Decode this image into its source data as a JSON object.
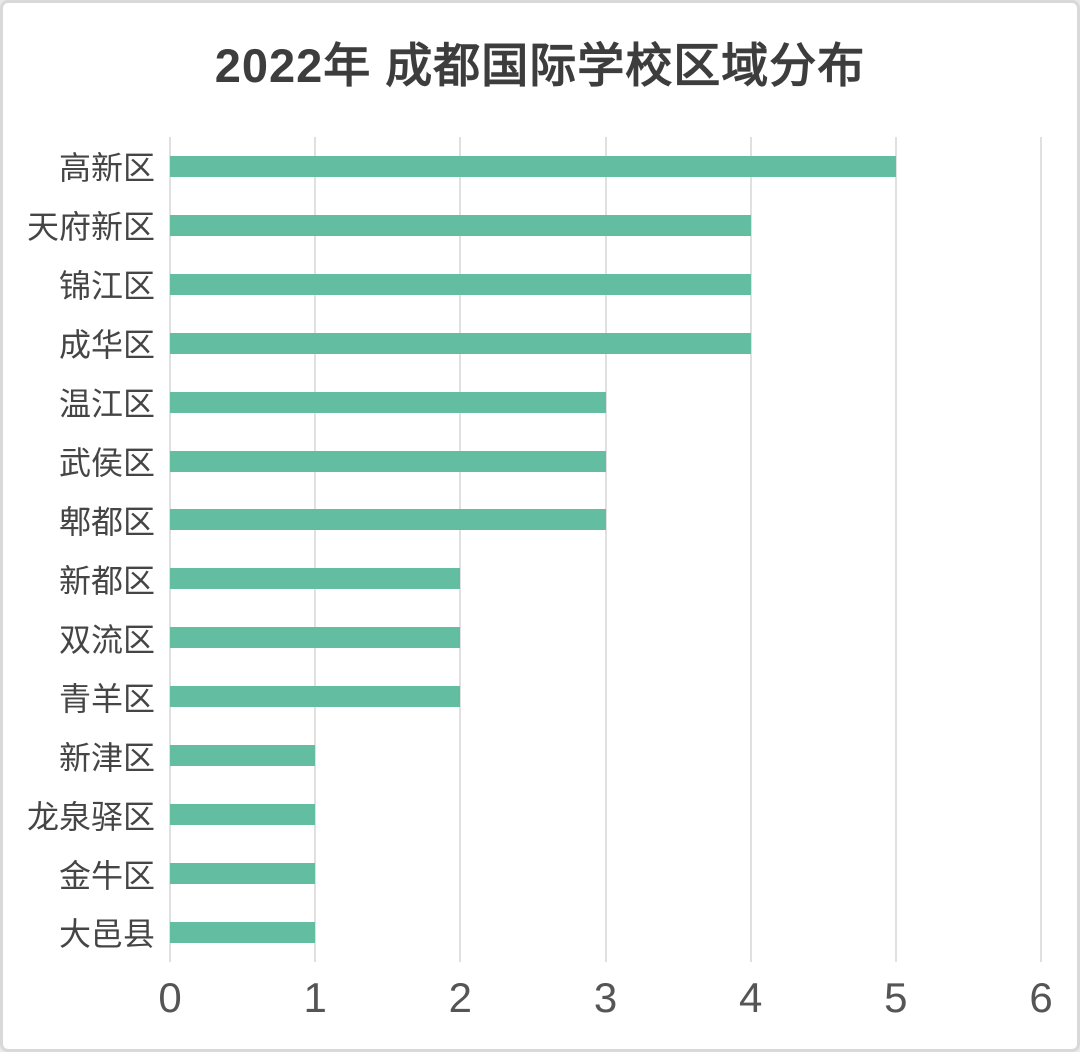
{
  "chart_data": {
    "type": "bar",
    "orientation": "horizontal",
    "title": "2022年 成都国际学校区域分布",
    "categories": [
      "高新区",
      "天府新区",
      "锦江区",
      "成华区",
      "温江区",
      "武侯区",
      "郫都区",
      "新都区",
      "双流区",
      "青羊区",
      "新津区",
      "龙泉驿区",
      "金牛区",
      "大邑县"
    ],
    "values": [
      5,
      4,
      4,
      4,
      3,
      3,
      3,
      2,
      2,
      2,
      1,
      1,
      1,
      1
    ],
    "xlabel": "",
    "ylabel": "",
    "xlim": [
      0,
      6
    ],
    "xticks": [
      "0",
      "1",
      "2",
      "3",
      "4",
      "5",
      "6"
    ],
    "grid": "vertical-only",
    "legend": "none",
    "colors": {
      "bar": "#63bda0",
      "gridline": "#e0e0e0",
      "title_text": "#3d3d3d",
      "category_text": "#454545",
      "tick_text": "#555555",
      "card_background": "#ffffff",
      "card_border": "#d9d9d9"
    }
  }
}
